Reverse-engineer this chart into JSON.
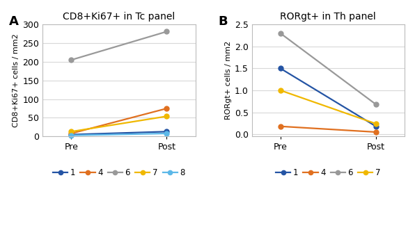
{
  "panel_A": {
    "title": "CD8+Ki67+ in Tc panel",
    "ylabel": "CD8+Ki67+ cells / mm2",
    "ylim": [
      0,
      300
    ],
    "yticks": [
      0,
      50,
      100,
      150,
      200,
      250,
      300
    ],
    "series": {
      "1": {
        "pre": 5,
        "post": 13,
        "color": "#2454a4"
      },
      "4": {
        "pre": 8,
        "post": 75,
        "color": "#e07020"
      },
      "6": {
        "pre": 205,
        "post": 281,
        "color": "#999999"
      },
      "7": {
        "pre": 13,
        "post": 54,
        "color": "#f0b800"
      },
      "8": {
        "pre": 3,
        "post": 8,
        "color": "#5cb8e8"
      }
    },
    "legend_order": [
      "1",
      "4",
      "6",
      "7",
      "8"
    ]
  },
  "panel_B": {
    "title": "RORgt+ in Th panel",
    "ylabel": "RORgt+ cells / mm2",
    "ylim": [
      -0.05,
      2.5
    ],
    "ylim_display": [
      0.0,
      2.5
    ],
    "yticks": [
      0.0,
      0.5,
      1.0,
      1.5,
      2.0,
      2.5
    ],
    "series": {
      "1": {
        "pre": 1.5,
        "post": 0.18,
        "color": "#2454a4"
      },
      "4": {
        "pre": 0.18,
        "post": 0.05,
        "color": "#e07020"
      },
      "6": {
        "pre": 2.3,
        "post": 0.68,
        "color": "#999999"
      },
      "7": {
        "pre": 1.0,
        "post": 0.24,
        "color": "#f0b800"
      }
    },
    "legend_order": [
      "1",
      "4",
      "6",
      "7"
    ]
  },
  "xticklabels": [
    "Pre",
    "Post"
  ],
  "xtick_positions": [
    0,
    1
  ],
  "fig_bg": "#ffffff",
  "plot_bg": "#ffffff",
  "grid_color": "#d8d8d8",
  "border_color": "#bbbbbb",
  "label_A": "A",
  "label_B": "B",
  "title_fontsize": 10,
  "axis_label_fontsize": 8,
  "tick_fontsize": 9,
  "legend_fontsize": 8.5,
  "marker_size": 5,
  "line_width": 1.6
}
